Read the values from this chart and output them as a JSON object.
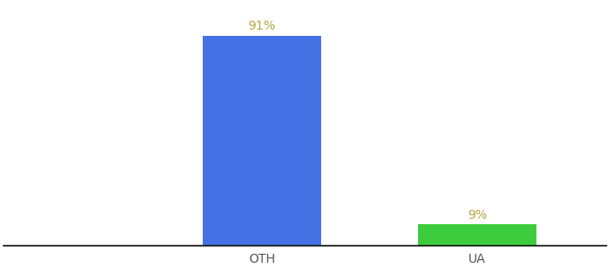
{
  "categories": [
    "OTH",
    "UA"
  ],
  "values": [
    91,
    9
  ],
  "bar_colors": [
    "#4472e4",
    "#3dcc3d"
  ],
  "label_color": "#b5a642",
  "label_fontsize": 10,
  "tick_fontsize": 10,
  "tick_color": "#555555",
  "background_color": "#ffffff",
  "ylim": [
    0,
    105
  ],
  "bar_width": 0.55,
  "xlim": [
    -0.9,
    1.9
  ]
}
